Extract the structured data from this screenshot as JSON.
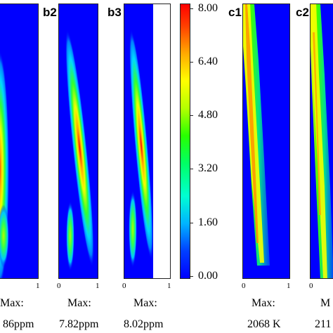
{
  "panels": {
    "b1": {
      "axis_right": "1",
      "max_label": "Max:",
      "max_value": "86ppm"
    },
    "b2": {
      "label": "b2",
      "axis_left": "0",
      "axis_right": "1",
      "max_label": "Max:",
      "max_value": "7.82ppm"
    },
    "b3": {
      "label": "b3",
      "axis_left": "0",
      "axis_right": "1",
      "max_label": "Max:",
      "max_value": "8.02ppm"
    },
    "c1": {
      "label": "c1",
      "axis_left": "0",
      "axis_right": "1",
      "max_label": "Max:",
      "max_value": "2068 K"
    },
    "c2": {
      "label": "c2",
      "axis_left": "0",
      "max_label": "M",
      "max_value": "211"
    }
  },
  "colorbar": {
    "ticks": [
      "8.00",
      "6.40",
      "4.80",
      "3.20",
      "1.60",
      "0.00"
    ]
  },
  "colors": {
    "background": "#0000ff",
    "low": "#0000ff",
    "high": "#ff0000"
  }
}
